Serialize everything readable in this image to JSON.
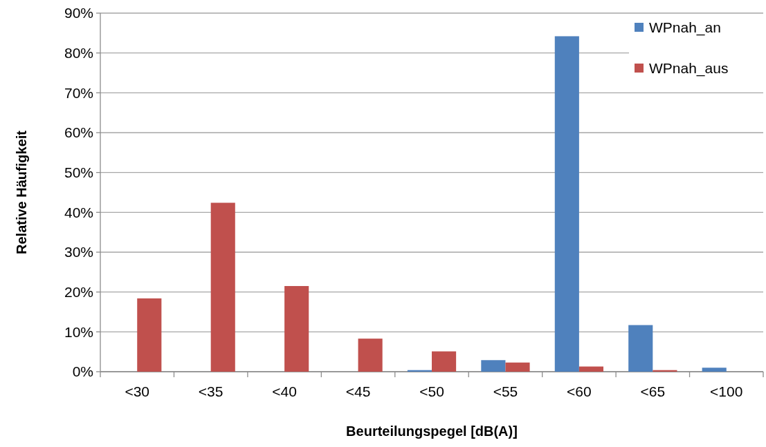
{
  "chart_data": {
    "type": "bar",
    "xlabel": "Beurteilungspegel [dB(A)]",
    "ylabel": "Relative Häufigkeit",
    "categories": [
      "<30",
      "<35",
      "<40",
      "<45",
      "<50",
      "<55",
      "<60",
      "<65",
      "<100"
    ],
    "series": [
      {
        "name": "WPnah_an",
        "color": "#4f81bd",
        "values": [
          0,
          0,
          0,
          0,
          0.4,
          2.9,
          84.2,
          11.7,
          1.0
        ]
      },
      {
        "name": "WPnah_aus",
        "color": "#c0504d",
        "values": [
          18.4,
          42.4,
          21.5,
          8.3,
          5.1,
          2.3,
          1.3,
          0.4,
          0
        ]
      }
    ],
    "ylim": [
      0,
      90
    ],
    "yticks": [
      {
        "value": 0,
        "label": "0%"
      },
      {
        "value": 10,
        "label": "10%"
      },
      {
        "value": 20,
        "label": "20%"
      },
      {
        "value": 30,
        "label": "30%"
      },
      {
        "value": 40,
        "label": "40%"
      },
      {
        "value": 50,
        "label": "50%"
      },
      {
        "value": 60,
        "label": "60%"
      },
      {
        "value": 70,
        "label": "70%"
      },
      {
        "value": 80,
        "label": "80%"
      },
      {
        "value": 90,
        "label": "90%"
      }
    ],
    "grid": "y",
    "legend": "top right"
  }
}
